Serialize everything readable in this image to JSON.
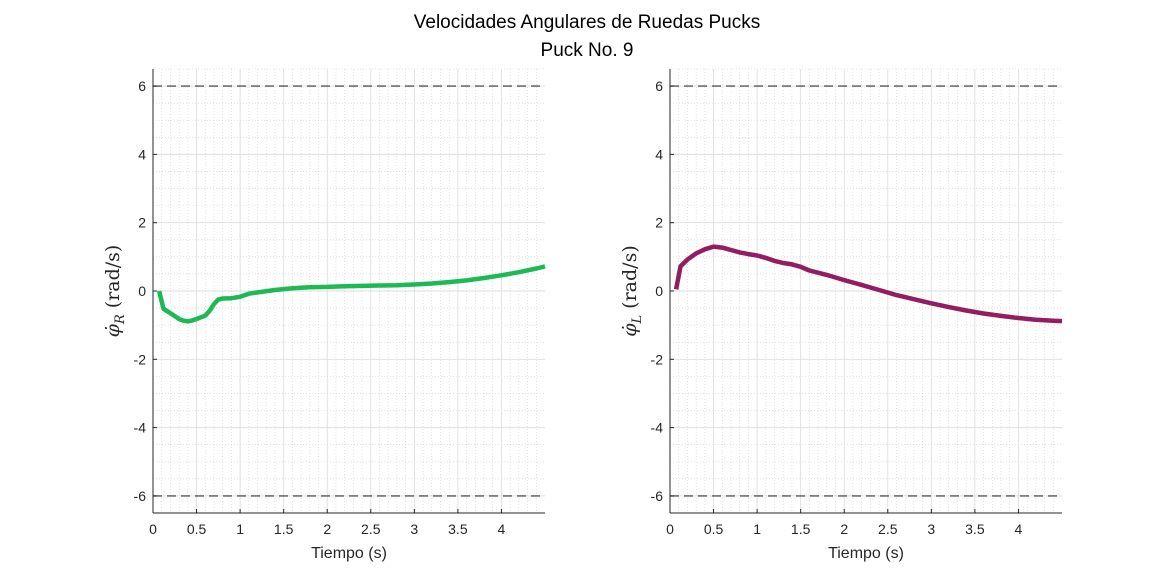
{
  "figure": {
    "title_line1": "Velocidades Angulares de Ruedas Pucks",
    "title_line2": "Puck No. 9"
  },
  "chart_data": [
    {
      "type": "line",
      "xlabel": "Tiempo (s)",
      "ylabel_symbol": "φ̇",
      "ylabel_subscript": "R",
      "ylabel_units": "(rad/s)",
      "xlim": [
        0,
        4.5
      ],
      "ylim": [
        -6.5,
        6.5
      ],
      "xticks": [
        0,
        0.5,
        1,
        1.5,
        2,
        2.5,
        3,
        3.5,
        4
      ],
      "xtick_labels": [
        "0",
        "0.5",
        "1",
        "1.5",
        "2",
        "2.5",
        "3",
        "3.5",
        "4"
      ],
      "yticks": [
        -6,
        -4,
        -2,
        0,
        2,
        4,
        6
      ],
      "ytick_labels": [
        "-6",
        "-4",
        "-2",
        "0",
        "2",
        "4",
        "6"
      ],
      "grid": true,
      "minor_grid": true,
      "limit_lines": [
        6,
        -6
      ],
      "limit_line_color": "#555555",
      "series": [
        {
          "color": "#1db954",
          "x": [
            0.07,
            0.12,
            0.2,
            0.3,
            0.35,
            0.4,
            0.45,
            0.5,
            0.55,
            0.6,
            0.65,
            0.7,
            0.75,
            0.8,
            0.9,
            1.0,
            1.1,
            1.2,
            1.4,
            1.6,
            1.8,
            2.0,
            2.2,
            2.4,
            2.6,
            2.8,
            3.0,
            3.2,
            3.4,
            3.6,
            3.8,
            4.0,
            4.2,
            4.4,
            4.5
          ],
          "y": [
            0.0,
            -0.52,
            -0.65,
            -0.82,
            -0.87,
            -0.89,
            -0.86,
            -0.82,
            -0.77,
            -0.72,
            -0.58,
            -0.38,
            -0.25,
            -0.22,
            -0.21,
            -0.17,
            -0.08,
            -0.04,
            0.03,
            0.08,
            0.11,
            0.12,
            0.14,
            0.15,
            0.16,
            0.17,
            0.19,
            0.22,
            0.26,
            0.31,
            0.38,
            0.46,
            0.55,
            0.66,
            0.72
          ]
        }
      ]
    },
    {
      "type": "line",
      "xlabel": "Tiempo (s)",
      "ylabel_symbol": "φ̇",
      "ylabel_subscript": "L",
      "ylabel_units": "(rad/s)",
      "xlim": [
        0,
        4.5
      ],
      "ylim": [
        -6.5,
        6.5
      ],
      "xticks": [
        0,
        0.5,
        1,
        1.5,
        2,
        2.5,
        3,
        3.5,
        4
      ],
      "xtick_labels": [
        "0",
        "0.5",
        "1",
        "1.5",
        "2",
        "2.5",
        "3",
        "3.5",
        "4"
      ],
      "yticks": [
        -6,
        -4,
        -2,
        0,
        2,
        4,
        6
      ],
      "ytick_labels": [
        "-6",
        "-4",
        "-2",
        "0",
        "2",
        "4",
        "6"
      ],
      "grid": true,
      "minor_grid": true,
      "limit_lines": [
        6,
        -6
      ],
      "limit_line_color": "#555555",
      "series": [
        {
          "color": "#941c61",
          "x": [
            0.07,
            0.12,
            0.2,
            0.3,
            0.4,
            0.5,
            0.6,
            0.7,
            0.8,
            0.9,
            1.0,
            1.1,
            1.2,
            1.3,
            1.4,
            1.5,
            1.6,
            1.8,
            2.0,
            2.2,
            2.4,
            2.6,
            2.8,
            3.0,
            3.2,
            3.4,
            3.6,
            3.8,
            4.0,
            4.2,
            4.4,
            4.5
          ],
          "y": [
            0.05,
            0.72,
            0.92,
            1.1,
            1.22,
            1.3,
            1.27,
            1.2,
            1.13,
            1.08,
            1.04,
            0.97,
            0.88,
            0.82,
            0.78,
            0.71,
            0.6,
            0.47,
            0.32,
            0.18,
            0.03,
            -0.12,
            -0.24,
            -0.36,
            -0.47,
            -0.57,
            -0.66,
            -0.73,
            -0.79,
            -0.84,
            -0.87,
            -0.88
          ]
        }
      ]
    }
  ]
}
